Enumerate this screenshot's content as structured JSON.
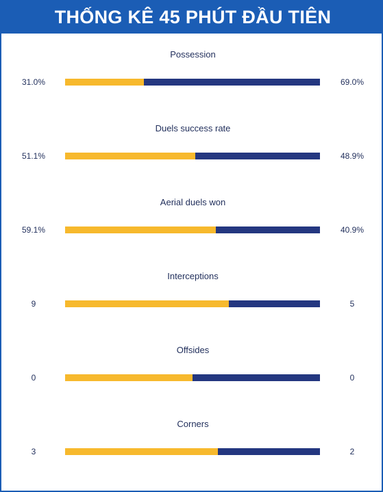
{
  "header": {
    "title": "THỐNG KÊ 45 PHÚT ĐẦU TIÊN"
  },
  "colors": {
    "header_bg": "#1b5db5",
    "home": "#f7b92d",
    "away": "#243780",
    "text": "#1f2d5a"
  },
  "chart_data": {
    "type": "bar",
    "title": "THỐNG KÊ 45 PHÚT ĐẦU TIÊN",
    "stats": [
      {
        "label": "Possession",
        "home_text": "31.0%",
        "away_text": "69.0%",
        "home_share": 0.31
      },
      {
        "label": "Duels success rate",
        "home_text": "51.1%",
        "away_text": "48.9%",
        "home_share": 0.511
      },
      {
        "label": "Aerial duels won",
        "home_text": "59.1%",
        "away_text": "40.9%",
        "home_share": 0.591
      },
      {
        "label": "Interceptions",
        "home_text": "9",
        "away_text": "5",
        "home_share": 0.643
      },
      {
        "label": "Offsides",
        "home_text": "0",
        "away_text": "0",
        "home_share": 0.5
      },
      {
        "label": "Corners",
        "home_text": "3",
        "away_text": "2",
        "home_share": 0.6
      }
    ]
  }
}
